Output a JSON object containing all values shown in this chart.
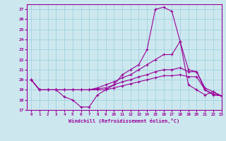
{
  "x_hours": [
    0,
    1,
    2,
    3,
    4,
    5,
    6,
    7,
    8,
    9,
    10,
    11,
    12,
    13,
    14,
    15,
    16,
    17,
    18,
    19,
    20,
    21,
    22,
    23
  ],
  "line1": [
    20,
    19,
    19,
    19,
    18.3,
    18,
    17.3,
    17.3,
    18.5,
    19,
    19.5,
    20.5,
    21,
    21.5,
    23,
    27,
    27.2,
    26.8,
    23.8,
    19.5,
    19.0,
    18.5,
    18.8,
    18.4
  ],
  "line2": [
    20,
    19,
    19,
    19,
    19,
    19,
    19,
    19,
    19.2,
    19.5,
    19.8,
    20.2,
    20.5,
    21.0,
    21.5,
    22.0,
    22.5,
    22.5,
    23.8,
    21.0,
    20.8,
    19.0,
    18.5,
    18.4
  ],
  "line3": [
    20,
    19,
    19,
    19,
    19,
    19,
    19,
    19,
    19.1,
    19.2,
    19.5,
    19.8,
    20.0,
    20.3,
    20.5,
    20.8,
    21.0,
    21.0,
    21.2,
    20.8,
    20.8,
    19.2,
    18.8,
    18.4
  ],
  "line4": [
    20,
    19,
    19,
    19,
    19,
    19,
    19,
    19,
    19,
    19,
    19.2,
    19.4,
    19.6,
    19.8,
    20.0,
    20.2,
    20.4,
    20.4,
    20.5,
    20.3,
    20.3,
    19.0,
    18.6,
    18.4
  ],
  "ylim": [
    17,
    27.5
  ],
  "yticks": [
    17,
    18,
    19,
    20,
    21,
    22,
    23,
    24,
    25,
    26,
    27
  ],
  "xlim": [
    -0.5,
    23
  ],
  "xlabel": "Windchill (Refroidissement éolien,°C)",
  "line_color": "#990099",
  "bg_color": "#cce8ee",
  "grid_color": "#99ccdd"
}
